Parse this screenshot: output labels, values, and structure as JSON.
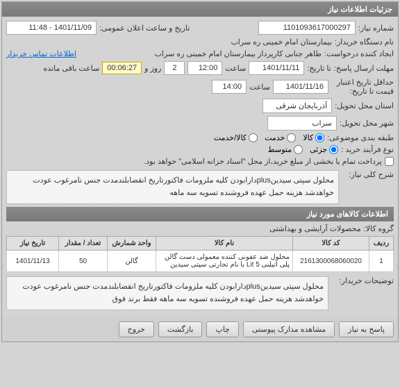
{
  "header": {
    "title": "جزئیات اطلاعات نیاز"
  },
  "fields": {
    "need_number_label": "شماره نیاز:",
    "need_number": "1101093617000297",
    "buyer_org_label": "نام دستگاه خریدار:",
    "buyer_org": "بیمارستان امام خمینی ره  سراب",
    "requester_label": "ایجاد کننده درخواست:",
    "requester": "طاهر جنابی کارپرداز بیمارستان امام خمینی ره  سراب",
    "contact_link": "اطلاعات تماس خریدار",
    "public_date_label": "تاریخ و ساعت اعلان عمومی:",
    "public_date": "1401/11/09 - 11:48",
    "deadline_label": "مهلت ارسال پاسخ:",
    "deadline_until": "تا تاریخ:",
    "deadline_date": "1401/11/11",
    "time_label": "ساعت",
    "deadline_time": "12:00",
    "days_label": "روز و",
    "days": "2",
    "countdown": "00:06:27",
    "remaining_label": "ساعت باقی مانده",
    "validity_label": "حداقل تاریخ اعتبار قیمت تا تاریخ:",
    "validity_date": "1401/11/16",
    "validity_time": "14:00",
    "province_label": "استان محل تحویل:",
    "province": "آذربایجان شرقی",
    "city_label": "شهر محل تحویل:",
    "city": "سراب",
    "category_label": "طبقه بندی موضوعی:",
    "cat_goods": "کالا",
    "cat_service": "خدمت",
    "cat_both": "کالا/خدمت",
    "process_label": "نوع فرآیند خرید :",
    "proc_low": "جزئی",
    "proc_med": "متوسط",
    "payment_note": "پرداخت تمام یا بخشی از مبلغ خرید،از محل \"اسناد خزانه اسلامی\" خواهد بود.",
    "main_desc_label": "شرح کلی نیاز:",
    "main_desc": "محلول سپتی سیدینplusدارابودن کلیه ملزومات فاکتورتاریخ انقضابلندمدت جنس نامرغوب عودت خواهدشد هزینه حمل عهده فروشنده تسویه سه ماهه"
  },
  "items_section": {
    "title": "اطلاعات کالاهای مورد نیاز",
    "group_label": "گروه کالا:",
    "group": "محصولات آرایشی و بهداشتی",
    "columns": {
      "row": "ردیف",
      "code": "کد کالا",
      "name": "نام کالا",
      "unit": "واحد شمارش",
      "qty": "تعداد / مقدار",
      "date": "تاریخ نیاز"
    },
    "rows": [
      {
        "row": "1",
        "code": "2161300068060020",
        "name": "محلول ضد عفونی کننده معمولی دست گالن پلی اتیلنی Lit 5 با نام تجارتی سپتی سیدین",
        "unit": "گالن",
        "qty": "50",
        "date": "1401/11/13"
      }
    ],
    "buyer_notes_label": "توضیحات خریدار:",
    "buyer_notes": "محلول سپتی سیدینplusدارابودن کلیه ملزومات فاکتورتاریخ انقضابلندمدت جنس نامرغوب عودت خواهدشد هزینه حمل عهده فروشنده تسویه سه ماهه فقط برند فوق"
  },
  "buttons": {
    "respond": "پاسخ به نیاز",
    "attachments": "مشاهده مدارک پیوستی",
    "print": "چاپ",
    "back": "بازگشت",
    "exit": "خروج"
  }
}
